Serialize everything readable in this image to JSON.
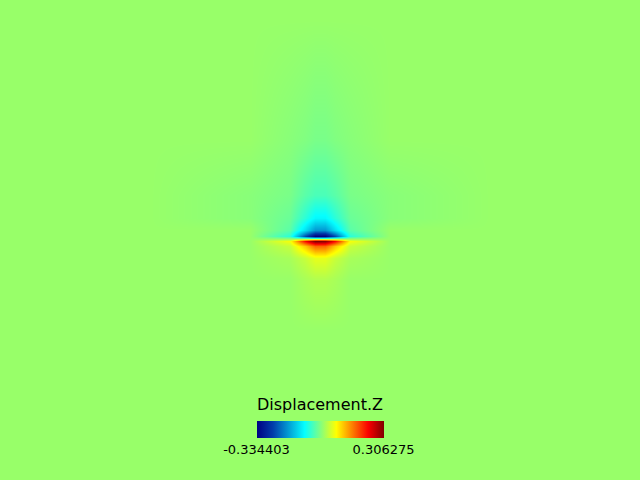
{
  "chart_data": {
    "type": "heatmap",
    "x": [
      20,
      150,
      250,
      290,
      305,
      315,
      325,
      335,
      350,
      390,
      490,
      620
    ],
    "y": [
      20,
      150,
      200,
      222,
      234,
      239,
      244,
      250,
      262,
      285,
      340,
      460
    ],
    "cells": [
      [
        0,
        0,
        0,
        0,
        0,
        0,
        0,
        0,
        0,
        0,
        0,
        0
      ],
      [
        0,
        0,
        0,
        0,
        0,
        0,
        0,
        0,
        0,
        0,
        0,
        0
      ],
      [
        0,
        0,
        0,
        0,
        0.01,
        0.015,
        0.015,
        0.01,
        0,
        0,
        0,
        0
      ],
      [
        0,
        0,
        0,
        0.01,
        0.03,
        0.05,
        0.05,
        0.03,
        0.01,
        0,
        0,
        0
      ],
      [
        0,
        0,
        0,
        0.03,
        0.1,
        0.16,
        0.16,
        0.1,
        0.03,
        0,
        0,
        0
      ],
      [
        0,
        0,
        0,
        0.06,
        0.22,
        0.306275,
        0.3,
        0.22,
        0.06,
        0,
        0,
        0
      ],
      [
        0,
        0,
        0,
        -0.07,
        -0.24,
        -0.334403,
        -0.33,
        -0.24,
        -0.07,
        0,
        0,
        0
      ],
      [
        0,
        0,
        0,
        -0.04,
        -0.12,
        -0.18,
        -0.18,
        -0.12,
        -0.04,
        0,
        0,
        0
      ],
      [
        0,
        0,
        -0.01,
        -0.03,
        -0.07,
        -0.1,
        -0.1,
        -0.07,
        -0.03,
        -0.01,
        0,
        0
      ],
      [
        0,
        0,
        -0.01,
        -0.02,
        -0.04,
        -0.05,
        -0.05,
        -0.04,
        -0.02,
        -0.01,
        0,
        0
      ],
      [
        0,
        0,
        0,
        -0.01,
        -0.015,
        -0.02,
        -0.02,
        -0.015,
        -0.01,
        0,
        0,
        0
      ],
      [
        0,
        0,
        0,
        0,
        0,
        0,
        0,
        0,
        0,
        0,
        0,
        0
      ]
    ],
    "xlim": [
      0,
      640
    ],
    "ylim": [
      0,
      480
    ],
    "tick_labels": false,
    "colorbar": {
      "title": "Displacement.Z",
      "range": [
        -0.334403,
        0.306275
      ],
      "ticks": [
        -0.334403,
        0.306275
      ]
    }
  }
}
